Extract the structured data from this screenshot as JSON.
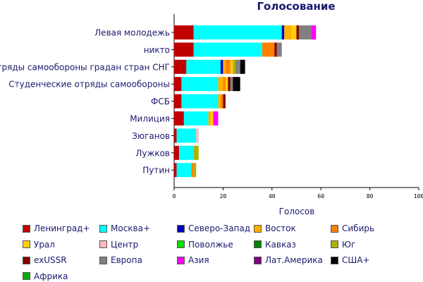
{
  "chart_data": {
    "type": "bar",
    "orientation": "horizontal",
    "stacked": true,
    "title": "Голосование",
    "xlabel": "Голосов",
    "ylabel": "",
    "xlim": [
      0,
      100
    ],
    "xticks": [
      0,
      20,
      40,
      60,
      80,
      100
    ],
    "grid": false,
    "legend_position": "bottom",
    "categories": [
      "Левая молодежь",
      "никто",
      "Отряды самообороны градан стран СНГ",
      "Студенческие отряды самообороны",
      "ФСБ",
      "Милиция",
      "Зюганов",
      "Лужков",
      "Путин"
    ],
    "series": [
      {
        "name": "Ленинград+",
        "color": "#c00000",
        "values": [
          8,
          8,
          5,
          3,
          3,
          4,
          1,
          2,
          1
        ]
      },
      {
        "name": "Москва+",
        "color": "#00ffff",
        "values": [
          36,
          28,
          14,
          15,
          15,
          10,
          8,
          6,
          6
        ]
      },
      {
        "name": "Северо-Запад",
        "color": "#0000c0",
        "values": [
          1,
          0,
          1,
          0,
          0,
          0,
          0,
          0,
          0
        ]
      },
      {
        "name": "Восток",
        "color": "#ffb000",
        "values": [
          3,
          0,
          1,
          2,
          1,
          1,
          0,
          0,
          0
        ]
      },
      {
        "name": "Сибирь",
        "color": "#ff8000",
        "values": [
          0,
          5,
          2,
          1,
          1,
          0,
          0,
          0,
          1
        ]
      },
      {
        "name": "Урал",
        "color": "#ffd000",
        "values": [
          2,
          0,
          1,
          1,
          0,
          1,
          0,
          0,
          0
        ]
      },
      {
        "name": "Центр",
        "color": "#ffb6c1",
        "values": [
          0,
          0,
          0,
          0,
          0,
          0,
          1,
          0,
          0
        ]
      },
      {
        "name": "Поволжье",
        "color": "#00e000",
        "values": [
          0,
          0,
          0,
          0,
          0,
          0,
          0,
          0,
          0
        ]
      },
      {
        "name": "Кавказ",
        "color": "#008000",
        "values": [
          0,
          0,
          0,
          0,
          0,
          0,
          0,
          0,
          0
        ]
      },
      {
        "name": "Юг",
        "color": "#b0b000",
        "values": [
          0,
          0,
          1,
          0,
          0,
          0,
          0,
          2,
          1
        ]
      },
      {
        "name": "exUSSR",
        "color": "#800000",
        "values": [
          1,
          1,
          0,
          1,
          1,
          0,
          0,
          0,
          0
        ]
      },
      {
        "name": "Европа",
        "color": "#808080",
        "values": [
          5,
          2,
          2,
          1,
          0,
          0,
          0,
          0,
          0
        ]
      },
      {
        "name": "Азия",
        "color": "#ff00ff",
        "values": [
          2,
          0,
          0,
          0,
          0,
          2,
          0,
          0,
          0
        ]
      },
      {
        "name": "Лат.Америка",
        "color": "#800080",
        "values": [
          0,
          0,
          0,
          0,
          0,
          0,
          0,
          0,
          0
        ]
      },
      {
        "name": "США+",
        "color": "#000000",
        "values": [
          0,
          0,
          2,
          3,
          0,
          0,
          0,
          0,
          0
        ]
      },
      {
        "name": "Африка",
        "color": "#00b000",
        "values": [
          0,
          0,
          0,
          0,
          0,
          0,
          0,
          0,
          0
        ]
      }
    ]
  }
}
